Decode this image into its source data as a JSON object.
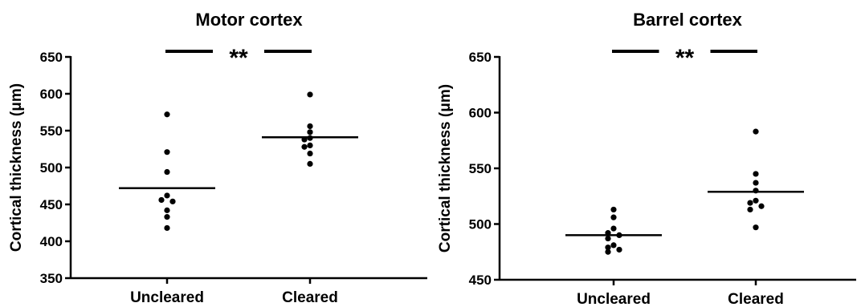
{
  "chart_data": [
    {
      "type": "scatter",
      "title": "Motor cortex",
      "ylabel": "Cortical thickness (μm)",
      "categories": [
        "Uncleared",
        "Cleared"
      ],
      "ylim": [
        350,
        650
      ],
      "yticks": [
        350,
        400,
        450,
        500,
        550,
        600,
        650
      ],
      "series": [
        {
          "category": "Uncleared",
          "values": [
            572,
            521,
            494,
            462,
            456,
            454,
            442,
            433,
            418
          ],
          "mean": 472
        },
        {
          "category": "Cleared",
          "values": [
            599,
            556,
            548,
            540,
            538,
            530,
            528,
            519,
            505
          ],
          "mean": 541
        }
      ],
      "significance": "**",
      "grid": false,
      "legend": "none"
    },
    {
      "type": "scatter",
      "title": "Barrel cortex",
      "ylabel": "Cortical thickness (μm)",
      "categories": [
        "Uncleared",
        "Cleared"
      ],
      "ylim": [
        450,
        650
      ],
      "yticks": [
        450,
        500,
        550,
        600,
        650
      ],
      "series": [
        {
          "category": "Uncleared",
          "values": [
            513,
            506,
            496,
            492,
            490,
            487,
            481,
            479,
            477,
            475
          ],
          "mean": 490
        },
        {
          "category": "Cleared",
          "values": [
            583,
            545,
            537,
            530,
            521,
            519,
            516,
            513,
            497
          ],
          "mean": 529
        }
      ],
      "significance": "**",
      "grid": false,
      "legend": "none"
    }
  ]
}
